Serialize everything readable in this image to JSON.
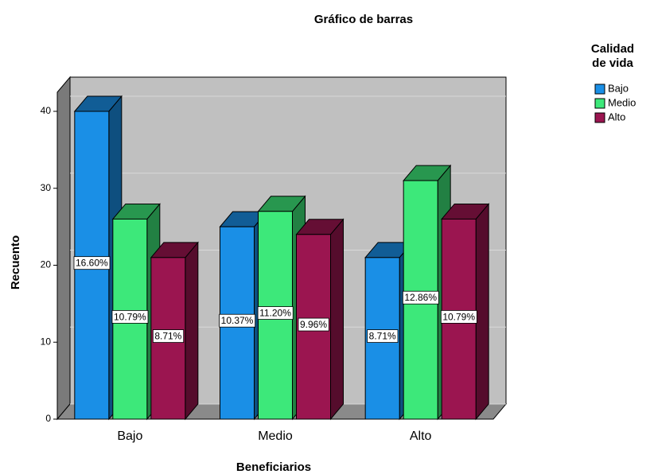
{
  "chart_data": {
    "type": "bar3d",
    "title": "Gráfico de barras",
    "x_label": "Beneficiarios",
    "y_label": "Recuento",
    "categories": [
      "Bajo",
      "Medio",
      "Alto"
    ],
    "legend_title": [
      "Calidad",
      "de vida"
    ],
    "legend": "right",
    "series": [
      {
        "name": "Bajo",
        "color": "#1a8fe6",
        "values": [
          40,
          25,
          21
        ],
        "percent_labels": [
          "16.60%",
          "10.37%",
          "8.71%"
        ]
      },
      {
        "name": "Medio",
        "color": "#3de87a",
        "values": [
          26,
          27,
          31
        ],
        "percent_labels": [
          "10.79%",
          "11.20%",
          "12.86%"
        ]
      },
      {
        "name": "Alto",
        "color": "#9b1550",
        "values": [
          21,
          24,
          26
        ],
        "percent_labels": [
          "8.71%",
          "9.96%",
          "10.79%"
        ]
      }
    ],
    "ylim": [
      0,
      40
    ],
    "yticks": [
      0,
      10,
      20,
      30,
      40
    ],
    "grid": true
  }
}
